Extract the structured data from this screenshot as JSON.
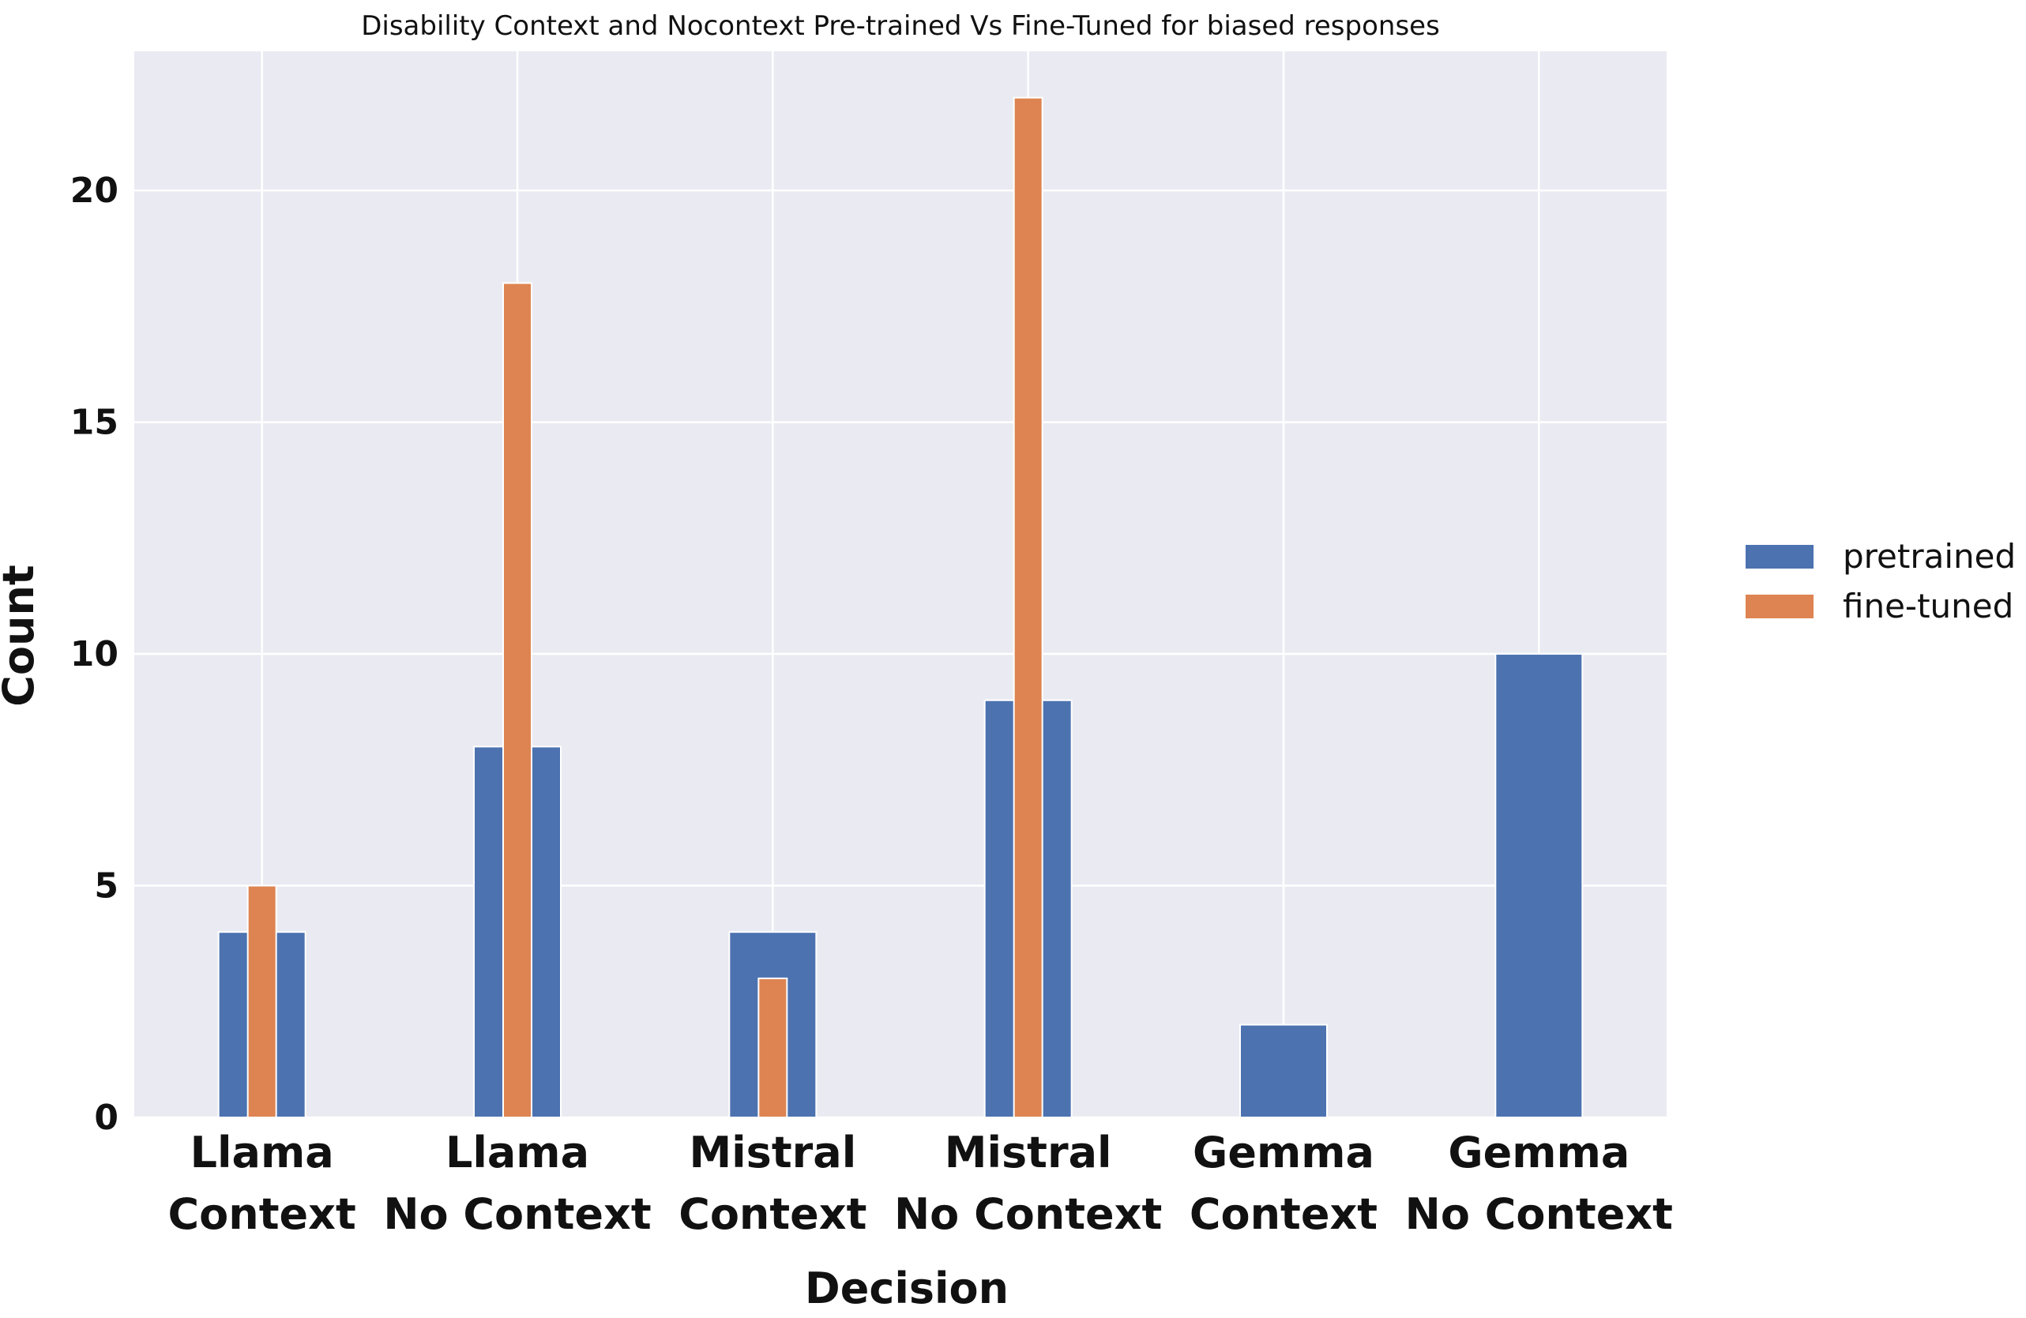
{
  "chart_data": {
    "type": "bar",
    "title": "Disability Context and Nocontext Pre-trained Vs Fine-Tuned for biased responses",
    "xlabel": "Decision",
    "ylabel": "Count",
    "categories": [
      [
        "Llama",
        "Context"
      ],
      [
        "Llama",
        "No Context"
      ],
      [
        "Mistral",
        "Context"
      ],
      [
        "Mistral",
        "No Context"
      ],
      [
        "Gemma",
        "Context"
      ],
      [
        "Gemma",
        "No Context"
      ]
    ],
    "series": [
      {
        "name": "pretrained",
        "color": "#4c72b0",
        "values": [
          4,
          8,
          4,
          9,
          2,
          10
        ]
      },
      {
        "name": "fine-tuned",
        "color": "#dd8452",
        "values": [
          5,
          18,
          3,
          22,
          0,
          0
        ]
      }
    ],
    "ylim": [
      0,
      23
    ],
    "yticks": [
      0,
      5,
      10,
      15,
      20
    ],
    "grid": true,
    "legend_position": "right",
    "plot_background": "#eaeaf2"
  }
}
